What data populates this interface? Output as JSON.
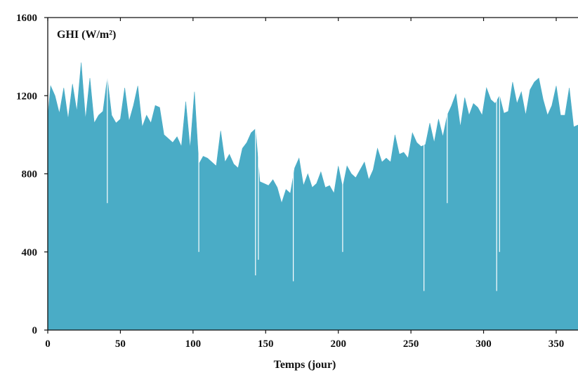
{
  "chart_data": {
    "type": "bar",
    "title": "",
    "inset_label": "GHI (W/m²)",
    "xlabel": "Temps (jour)",
    "ylabel": "",
    "xlim": [
      0,
      365
    ],
    "ylim": [
      0,
      1600
    ],
    "xticks": [
      0,
      50,
      100,
      150,
      200,
      250,
      300,
      350
    ],
    "yticks": [
      0,
      400,
      800,
      1200,
      1600
    ],
    "grid": false,
    "legend": "none",
    "colors": {
      "series": "#4aacc6",
      "axis": "#111111"
    },
    "series": [
      {
        "name": "",
        "envelope_x": [
          0,
          2,
          5,
          8,
          11,
          14,
          17,
          20,
          23,
          26,
          29,
          32,
          35,
          38,
          41,
          44,
          47,
          50,
          53,
          56,
          59,
          62,
          65,
          68,
          71,
          74,
          77,
          80,
          83,
          86,
          89,
          92,
          95,
          98,
          101,
          104,
          107,
          110,
          113,
          116,
          119,
          122,
          125,
          128,
          131,
          134,
          137,
          140,
          143,
          146,
          149,
          152,
          155,
          158,
          161,
          164,
          167,
          170,
          173,
          176,
          179,
          182,
          185,
          188,
          191,
          194,
          197,
          200,
          203,
          206,
          209,
          212,
          215,
          218,
          221,
          224,
          227,
          230,
          233,
          236,
          239,
          242,
          245,
          248,
          251,
          254,
          257,
          260,
          263,
          266,
          269,
          272,
          275,
          278,
          281,
          284,
          287,
          290,
          293,
          296,
          299,
          302,
          305,
          308,
          311,
          314,
          317,
          320,
          323,
          326,
          329,
          332,
          335,
          338,
          341,
          344,
          347,
          350,
          353,
          356,
          359,
          362,
          365
        ],
        "envelope_y": [
          1090,
          1250,
          1200,
          1110,
          1240,
          1080,
          1260,
          1120,
          1370,
          1080,
          1290,
          1060,
          1100,
          1120,
          1290,
          1100,
          1060,
          1080,
          1240,
          1070,
          1150,
          1250,
          1040,
          1100,
          1060,
          1150,
          1140,
          1000,
          980,
          960,
          990,
          940,
          1170,
          930,
          1220,
          850,
          890,
          880,
          860,
          840,
          1020,
          860,
          900,
          850,
          830,
          930,
          960,
          1010,
          1030,
          760,
          750,
          740,
          770,
          730,
          650,
          720,
          700,
          830,
          880,
          740,
          800,
          730,
          750,
          810,
          730,
          740,
          700,
          840,
          730,
          840,
          800,
          780,
          820,
          860,
          770,
          820,
          930,
          860,
          880,
          860,
          1000,
          900,
          910,
          880,
          1010,
          960,
          940,
          950,
          1060,
          960,
          1080,
          990,
          1100,
          1150,
          1210,
          1040,
          1190,
          1100,
          1160,
          1140,
          1100,
          1240,
          1180,
          1160,
          1200,
          1110,
          1120,
          1270,
          1160,
          1220,
          1100,
          1230,
          1270,
          1290,
          1180,
          1100,
          1150,
          1250,
          1100,
          1100,
          1240,
          1040,
          1050
        ],
        "min_level": 0
      }
    ],
    "dips": [
      {
        "x": 41,
        "y": 650
      },
      {
        "x": 104,
        "y": 400
      },
      {
        "x": 143,
        "y": 280
      },
      {
        "x": 145,
        "y": 360
      },
      {
        "x": 169,
        "y": 250
      },
      {
        "x": 203,
        "y": 400
      },
      {
        "x": 259,
        "y": 200
      },
      {
        "x": 275,
        "y": 650
      },
      {
        "x": 309,
        "y": 200
      },
      {
        "x": 311,
        "y": 400
      }
    ]
  }
}
